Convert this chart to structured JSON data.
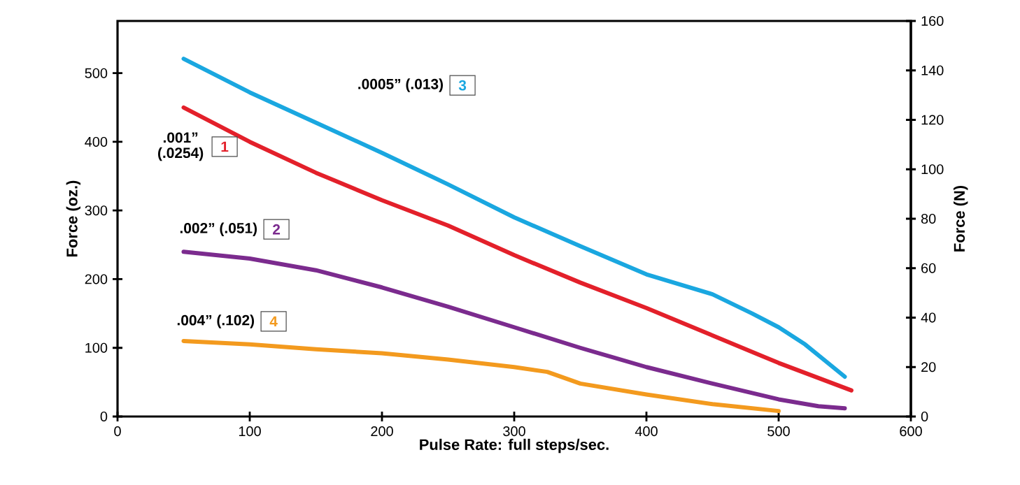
{
  "chart_data": {
    "type": "line",
    "xlabel": "Pulse Rate: full steps/sec.",
    "ylabel": "Force (oz.)",
    "y2label": "Force (N)",
    "xlim": [
      0,
      600
    ],
    "xticks": [
      0,
      100,
      200,
      300,
      400,
      500,
      600
    ],
    "ylim": [
      0,
      576
    ],
    "yticks": [
      0,
      100,
      200,
      300,
      400,
      500
    ],
    "y2lim": [
      0,
      160
    ],
    "y2ticks": [
      0,
      20,
      40,
      60,
      80,
      100,
      120,
      140,
      160
    ],
    "series": [
      {
        "name": "1",
        "color": "#e3202a",
        "x": [
          50,
          75,
          100,
          150,
          200,
          250,
          300,
          350,
          400,
          450,
          500,
          555
        ],
        "values": [
          450,
          425,
          400,
          355,
          315,
          278,
          235,
          195,
          158,
          118,
          78,
          38
        ]
      },
      {
        "name": "2",
        "color": "#7b2b8e",
        "x": [
          50,
          100,
          150,
          200,
          250,
          300,
          350,
          400,
          450,
          500,
          530,
          550
        ],
        "values": [
          240,
          230,
          213,
          188,
          160,
          130,
          100,
          72,
          48,
          25,
          15,
          12
        ]
      },
      {
        "name": "3",
        "color": "#1aa7e0",
        "x": [
          50,
          100,
          150,
          200,
          250,
          300,
          350,
          400,
          450,
          480,
          500,
          520,
          550
        ],
        "values": [
          521,
          472,
          428,
          384,
          338,
          290,
          248,
          207,
          178,
          150,
          130,
          105,
          58
        ]
      },
      {
        "name": "4",
        "color": "#f39a1e",
        "x": [
          50,
          100,
          150,
          200,
          250,
          300,
          325,
          350,
          400,
          450,
          500
        ],
        "values": [
          110,
          105,
          98,
          92,
          83,
          72,
          65,
          48,
          32,
          18,
          8
        ]
      }
    ],
    "annotations": [
      ".001” (.0254)",
      ".002” (.051)",
      ".0005” (.013)",
      ".004” (.102)"
    ]
  }
}
